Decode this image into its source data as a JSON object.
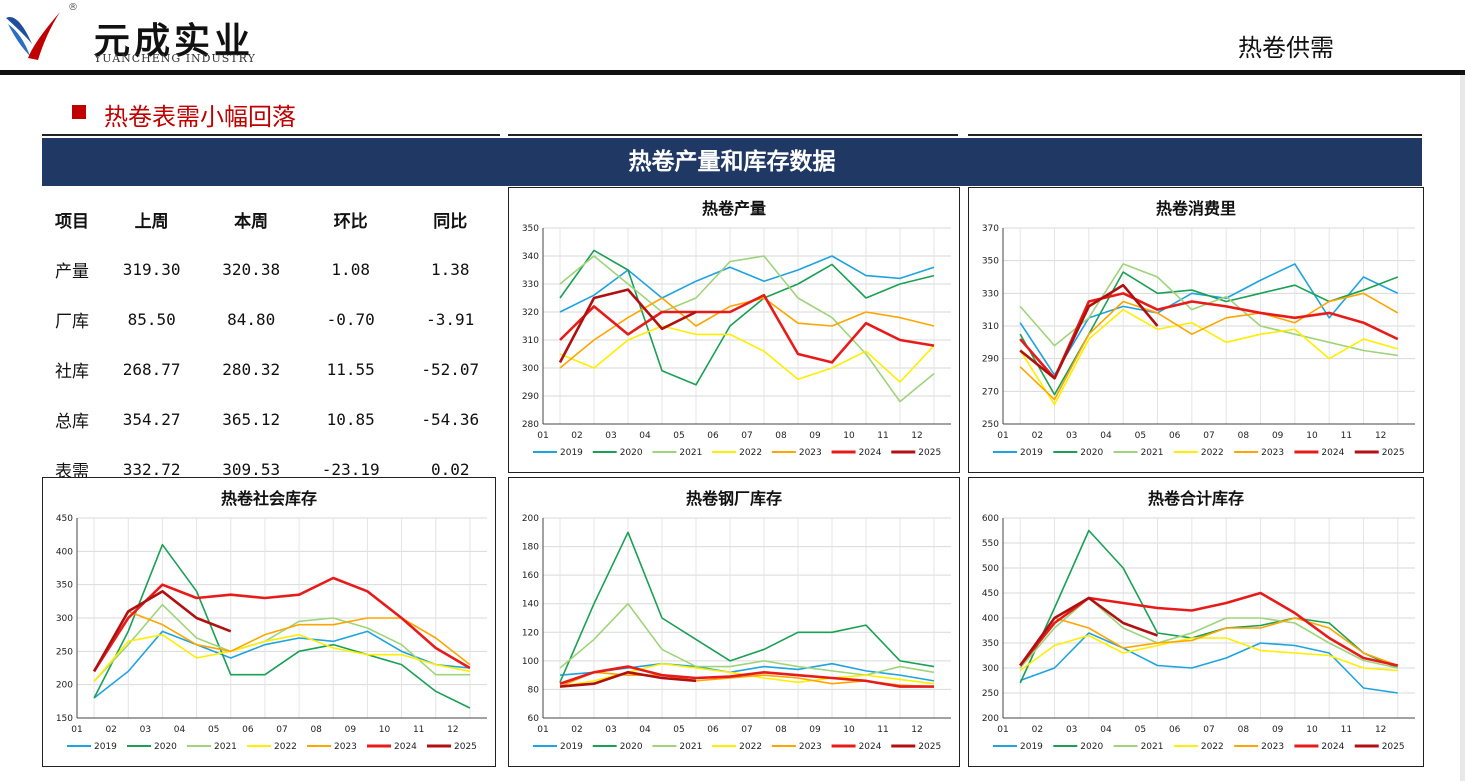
{
  "header": {
    "brand_cn": "元成实业",
    "brand_en": "YUANCHENG INDUSTRY",
    "reg_mark": "®",
    "page_tag": "热卷供需"
  },
  "section": {
    "title": "热卷表需小幅回落"
  },
  "banner": {
    "title": "热卷产量和库存数据"
  },
  "colors": {
    "brand_red": "#c00000",
    "banner_navy": "#1f3864",
    "positive": "#e0001b",
    "negative": "#1a9a50"
  },
  "table": {
    "headers": [
      "项目",
      "上周",
      "本周",
      "环比",
      "同比"
    ],
    "rows": [
      {
        "item": "产量",
        "last": "319.30",
        "this": "320.38",
        "wow": "1.08",
        "yoy": "1.38",
        "wow_sign": "pos",
        "yoy_sign": "pos"
      },
      {
        "item": "厂库",
        "last": "85.50",
        "this": "84.80",
        "wow": "-0.70",
        "yoy": "-3.91",
        "wow_sign": "neg",
        "yoy_sign": "neg"
      },
      {
        "item": "社库",
        "last": "268.77",
        "this": "280.32",
        "wow": "11.55",
        "yoy": "-52.07",
        "wow_sign": "pos",
        "yoy_sign": "neg"
      },
      {
        "item": "总库",
        "last": "354.27",
        "this": "365.12",
        "wow": "10.85",
        "yoy": "-54.36",
        "wow_sign": "pos",
        "yoy_sign": "neg"
      },
      {
        "item": "表需",
        "last": "332.72",
        "this": "309.53",
        "wow": "-23.19",
        "yoy": "0.02",
        "wow_sign": "neg",
        "yoy_sign": "pos"
      }
    ]
  },
  "legend_series": [
    {
      "name": "2019",
      "color": "#1ea3e0"
    },
    {
      "name": "2020",
      "color": "#1aa055"
    },
    {
      "name": "2021",
      "color": "#9fd47a"
    },
    {
      "name": "2022",
      "color": "#ffee00"
    },
    {
      "name": "2023",
      "color": "#ffa500"
    },
    {
      "name": "2024",
      "color": "#e81b1b"
    },
    {
      "name": "2025",
      "color": "#b01010"
    }
  ],
  "chart_data": [
    {
      "id": "production",
      "type": "line",
      "title": "热卷产量",
      "x_ticks": [
        "01",
        "02",
        "03",
        "04",
        "05",
        "06",
        "07",
        "08",
        "09",
        "10",
        "11",
        "12"
      ],
      "ylim": [
        280,
        350
      ],
      "y_ticks": [
        280,
        290,
        300,
        310,
        320,
        330,
        340,
        350
      ],
      "series": [
        {
          "name": "2019",
          "values": [
            320,
            326,
            335,
            325,
            331,
            336,
            331,
            335,
            340,
            333,
            332,
            336
          ]
        },
        {
          "name": "2020",
          "values": [
            325,
            342,
            335,
            299,
            294,
            315,
            325,
            330,
            337,
            325,
            330,
            333
          ]
        },
        {
          "name": "2021",
          "values": [
            330,
            340,
            330,
            320,
            325,
            338,
            340,
            325,
            318,
            305,
            288,
            298
          ]
        },
        {
          "name": "2022",
          "values": [
            305,
            300,
            310,
            315,
            312,
            312,
            306,
            296,
            300,
            306,
            295,
            308
          ]
        },
        {
          "name": "2023",
          "values": [
            300,
            310,
            318,
            325,
            315,
            322,
            325,
            316,
            315,
            320,
            318,
            315
          ]
        },
        {
          "name": "2024",
          "values": [
            310,
            322,
            312,
            320,
            320,
            320,
            326,
            305,
            302,
            316,
            310,
            308
          ]
        },
        {
          "name": "2025",
          "values": [
            302,
            325,
            328,
            314,
            320
          ]
        }
      ]
    },
    {
      "id": "consumption",
      "type": "line",
      "title": "热卷消费里",
      "x_ticks": [
        "01",
        "02",
        "03",
        "04",
        "05",
        "06",
        "07",
        "08",
        "09",
        "10",
        "11",
        "12"
      ],
      "ylim": [
        250,
        370
      ],
      "y_ticks": [
        250,
        270,
        290,
        310,
        330,
        350,
        370
      ],
      "series": [
        {
          "name": "2019",
          "values": [
            312,
            280,
            315,
            322,
            318,
            330,
            327,
            338,
            348,
            315,
            340,
            330
          ]
        },
        {
          "name": "2020",
          "values": [
            305,
            268,
            305,
            343,
            330,
            332,
            325,
            330,
            335,
            325,
            332,
            340
          ]
        },
        {
          "name": "2021",
          "values": [
            322,
            298,
            315,
            348,
            340,
            320,
            328,
            310,
            305,
            300,
            295,
            292
          ]
        },
        {
          "name": "2022",
          "values": [
            295,
            262,
            302,
            320,
            308,
            312,
            300,
            305,
            308,
            290,
            302,
            296
          ]
        },
        {
          "name": "2023",
          "values": [
            285,
            265,
            305,
            325,
            318,
            305,
            315,
            318,
            312,
            325,
            330,
            318
          ]
        },
        {
          "name": "2024",
          "values": [
            302,
            278,
            325,
            330,
            320,
            325,
            322,
            318,
            315,
            318,
            312,
            302
          ]
        },
        {
          "name": "2025",
          "values": [
            295,
            278,
            322,
            335,
            310
          ]
        }
      ]
    },
    {
      "id": "social_stock",
      "type": "line",
      "title": "热卷社会库存",
      "x_ticks": [
        "01",
        "02",
        "03",
        "04",
        "05",
        "06",
        "07",
        "08",
        "09",
        "10",
        "11",
        "12"
      ],
      "ylim": [
        150,
        450
      ],
      "y_ticks": [
        150,
        200,
        250,
        300,
        350,
        400,
        450
      ],
      "series": [
        {
          "name": "2019",
          "values": [
            180,
            220,
            280,
            260,
            240,
            260,
            270,
            265,
            280,
            250,
            230,
            225
          ]
        },
        {
          "name": "2020",
          "values": [
            180,
            280,
            410,
            340,
            215,
            215,
            250,
            260,
            245,
            230,
            190,
            165
          ]
        },
        {
          "name": "2021",
          "values": [
            205,
            260,
            320,
            270,
            250,
            265,
            295,
            300,
            285,
            260,
            215,
            215
          ]
        },
        {
          "name": "2022",
          "values": [
            205,
            265,
            275,
            240,
            250,
            265,
            275,
            255,
            245,
            245,
            230,
            220
          ]
        },
        {
          "name": "2023",
          "values": [
            220,
            310,
            290,
            260,
            250,
            275,
            290,
            290,
            300,
            300,
            270,
            230
          ]
        },
        {
          "name": "2024",
          "values": [
            220,
            300,
            350,
            330,
            335,
            330,
            335,
            360,
            340,
            300,
            255,
            225
          ]
        },
        {
          "name": "2025",
          "values": [
            220,
            310,
            340,
            300,
            280
          ]
        }
      ]
    },
    {
      "id": "mill_stock",
      "type": "line",
      "title": "热卷钢厂库存",
      "x_ticks": [
        "01",
        "02",
        "03",
        "04",
        "05",
        "06",
        "07",
        "08",
        "09",
        "10",
        "11",
        "12"
      ],
      "ylim": [
        60,
        200
      ],
      "y_ticks": [
        60,
        80,
        100,
        120,
        140,
        160,
        180,
        200
      ],
      "series": [
        {
          "name": "2019",
          "values": [
            90,
            92,
            95,
            98,
            96,
            92,
            96,
            94,
            98,
            93,
            90,
            86
          ]
        },
        {
          "name": "2020",
          "values": [
            85,
            140,
            190,
            130,
            115,
            100,
            108,
            120,
            120,
            125,
            100,
            96
          ]
        },
        {
          "name": "2021",
          "values": [
            95,
            115,
            140,
            108,
            96,
            96,
            100,
            96,
            93,
            90,
            96,
            92
          ]
        },
        {
          "name": "2022",
          "values": [
            82,
            86,
            92,
            98,
            95,
            92,
            88,
            85,
            88,
            90,
            87,
            84
          ]
        },
        {
          "name": "2023",
          "values": [
            82,
            92,
            90,
            90,
            86,
            88,
            90,
            88,
            84,
            86,
            83,
            82
          ]
        },
        {
          "name": "2024",
          "values": [
            84,
            92,
            96,
            90,
            88,
            89,
            92,
            90,
            88,
            86,
            82,
            82
          ]
        },
        {
          "name": "2025",
          "values": [
            82,
            84,
            92,
            88,
            86
          ]
        }
      ]
    },
    {
      "id": "total_stock",
      "type": "line",
      "title": "热卷合计库存",
      "x_ticks": [
        "01",
        "02",
        "03",
        "04",
        "05",
        "06",
        "07",
        "08",
        "09",
        "10",
        "11",
        "12"
      ],
      "ylim": [
        200,
        600
      ],
      "y_ticks": [
        200,
        250,
        300,
        350,
        400,
        450,
        500,
        550,
        600
      ],
      "series": [
        {
          "name": "2019",
          "values": [
            275,
            300,
            370,
            340,
            305,
            300,
            320,
            350,
            345,
            330,
            260,
            250
          ]
        },
        {
          "name": "2020",
          "values": [
            270,
            420,
            575,
            500,
            370,
            360,
            380,
            385,
            400,
            390,
            330,
            300
          ]
        },
        {
          "name": "2021",
          "values": [
            300,
            380,
            440,
            380,
            350,
            370,
            400,
            400,
            390,
            350,
            315,
            300
          ]
        },
        {
          "name": "2022",
          "values": [
            295,
            345,
            365,
            330,
            345,
            360,
            360,
            335,
            330,
            325,
            300,
            295
          ]
        },
        {
          "name": "2023",
          "values": [
            305,
            400,
            380,
            340,
            350,
            355,
            380,
            380,
            400,
            380,
            330,
            305
          ]
        },
        {
          "name": "2024",
          "values": [
            305,
            390,
            440,
            430,
            420,
            415,
            430,
            450,
            410,
            360,
            320,
            305
          ]
        },
        {
          "name": "2025",
          "values": [
            305,
            400,
            440,
            390,
            365
          ]
        }
      ]
    }
  ]
}
